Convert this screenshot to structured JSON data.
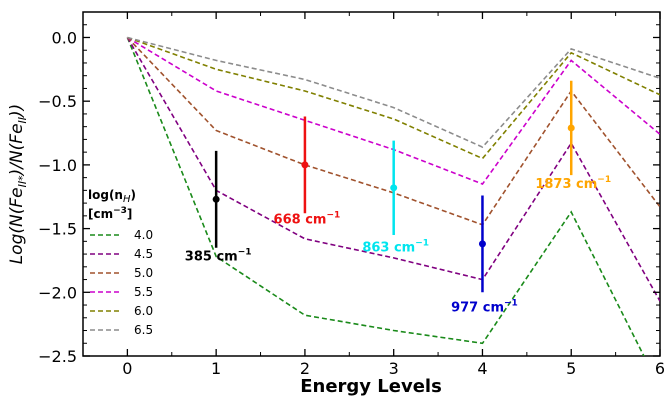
{
  "chart_data": {
    "type": "line",
    "xlabel": "Energy Levels",
    "ylabel": "Log(N(Fe_II*)/N(Fe_II))",
    "xlim": [
      -0.5,
      6
    ],
    "ylim": [
      -2.5,
      0.2
    ],
    "xticks": [
      0,
      1,
      2,
      3,
      4,
      5,
      6
    ],
    "yticks": [
      0.0,
      -0.5,
      -1.0,
      -1.5,
      -2.0,
      -2.5
    ],
    "xtick_labels": [
      "0",
      "1",
      "2",
      "3",
      "4",
      "5",
      "6"
    ],
    "ytick_labels": [
      "0.0",
      "−0.5",
      "−1.0",
      "−1.5",
      "−2.0",
      "−2.5"
    ],
    "grid": false,
    "legend": {
      "title_line1": "log(n",
      "title_line2": "[cm",
      "position": "left"
    },
    "x": [
      0,
      1,
      2,
      3,
      4,
      5,
      6
    ],
    "series": [
      {
        "name": "4.0",
        "color": "#1a8a1a",
        "values": [
          0.0,
          -1.72,
          -2.18,
          -2.3,
          -2.4,
          -1.37,
          -2.75
        ]
      },
      {
        "name": "4.5",
        "color": "#800080",
        "values": [
          0.0,
          -1.2,
          -1.58,
          -1.73,
          -1.9,
          -0.83,
          -2.07
        ]
      },
      {
        "name": "5.0",
        "color": "#a0522d",
        "values": [
          0.0,
          -0.73,
          -1.0,
          -1.22,
          -1.47,
          -0.42,
          -1.33
        ]
      },
      {
        "name": "5.5",
        "color": "#cc00cc",
        "values": [
          0.0,
          -0.42,
          -0.65,
          -0.88,
          -1.15,
          -0.18,
          -0.76
        ]
      },
      {
        "name": "6.0",
        "color": "#808000",
        "values": [
          0.0,
          -0.25,
          -0.42,
          -0.64,
          -0.95,
          -0.12,
          -0.45
        ]
      },
      {
        "name": "6.5",
        "color": "#8c8c8c",
        "values": [
          0.0,
          -0.18,
          -0.33,
          -0.55,
          -0.86,
          -0.09,
          -0.32
        ]
      }
    ],
    "observations": [
      {
        "x": 1,
        "y": -1.27,
        "err_low": 0.38,
        "err_high": 0.38,
        "color": "#000000",
        "label": "385 cm",
        "label_dy": 0.48
      },
      {
        "x": 2,
        "y": -1.0,
        "err_low": 0.38,
        "err_high": 0.38,
        "color": "#ee1111",
        "label": "668 cm",
        "label_dy": 0.46
      },
      {
        "x": 3,
        "y": -1.18,
        "err_low": 0.37,
        "err_high": 0.37,
        "color": "#00e5ee",
        "label": "863 cm",
        "label_dy": 0.5
      },
      {
        "x": 4,
        "y": -1.62,
        "err_low": 0.38,
        "err_high": 0.38,
        "color": "#0000cc",
        "label": "977 cm",
        "label_dy": 0.53
      },
      {
        "x": 5,
        "y": -0.71,
        "err_low": 0.37,
        "err_high": 0.37,
        "color": "#ffa500",
        "label": "1873 cm",
        "label_dy": 0.47
      }
    ]
  }
}
